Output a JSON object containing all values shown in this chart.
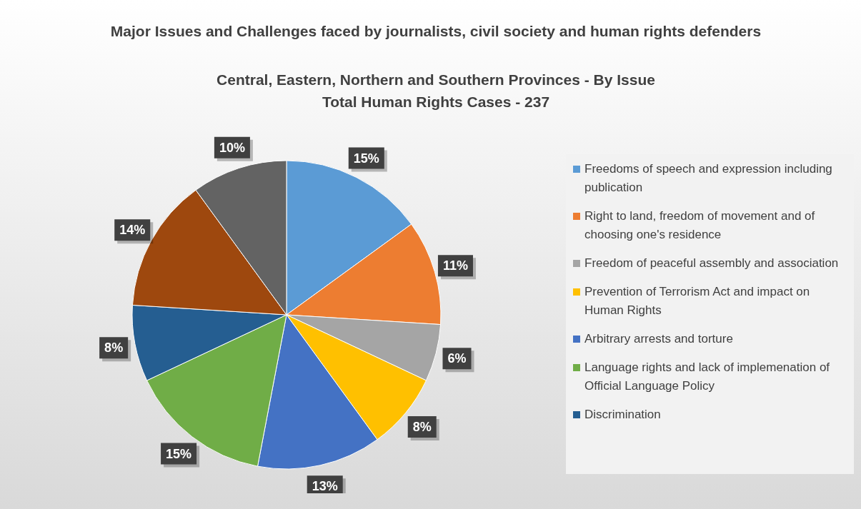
{
  "chart_data": {
    "type": "pie",
    "title": "Major Issues and Challenges faced by journalists, civil society and human rights defenders",
    "subtitle": "Central, Eastern, Northern and Southern Provinces - By Issue\nTotal Human Rights Cases - 237",
    "categories": [
      "Freedoms of speech and expression including publication",
      "Right to land, freedom of movement and of choosing one's residence",
      "Freedom of peaceful assembly and association",
      "Prevention of Terrorism Act and impact on Human Rights",
      "Arbitrary arrests and torture",
      "Language rights and lack of implemenation of Official Language Policy",
      "Discrimination",
      null,
      null
    ],
    "values": [
      15,
      11,
      6,
      8,
      13,
      15,
      8,
      14,
      10
    ],
    "colors": [
      "#5b9bd5",
      "#ed7d31",
      "#a5a5a5",
      "#ffc000",
      "#4472c4",
      "#70ad47",
      "#255e91",
      "#9e480e",
      "#636363"
    ],
    "value_labels": [
      "15%",
      "11%",
      "6%",
      "8%",
      "13%",
      "15%",
      "8%",
      "14%",
      "10%"
    ],
    "legend": "right"
  }
}
